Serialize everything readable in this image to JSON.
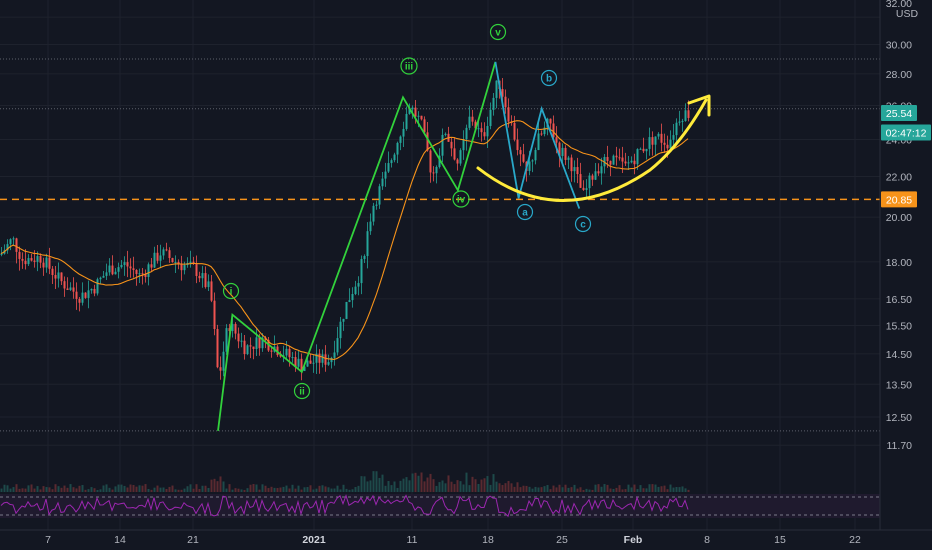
{
  "chart_data": {
    "type": "candlestick",
    "currency": "USD",
    "y_axis": {
      "scale": "log",
      "range": [
        11.3,
        33.0
      ],
      "ticks": [
        "32.00",
        "30.00",
        "28.00",
        "26.00",
        "24.00",
        "22.00",
        "20.00",
        "18.00",
        "16.50",
        "15.50",
        "14.50",
        "13.50",
        "12.50",
        "11.70"
      ],
      "tick_values": [
        32,
        30,
        28,
        26,
        24,
        22,
        20,
        18,
        16.5,
        15.5,
        14.5,
        13.5,
        12.5,
        11.7
      ]
    },
    "x_axis": {
      "ticks": [
        "7",
        "14",
        "21",
        "2021",
        "11",
        "18",
        "25",
        "Feb",
        "8",
        "15",
        "22"
      ],
      "bold_ticks": [
        "2021",
        "Feb"
      ]
    },
    "price_tags": [
      {
        "text": "25.54",
        "value": 25.54,
        "color": "#26a69a"
      },
      {
        "text": "02:47:12",
        "value": 24.4,
        "color": "#26a69a"
      },
      {
        "text": "20.85",
        "value": 20.85,
        "color": "#f7931a"
      }
    ],
    "support_line": {
      "value": 20.85,
      "color": "#f7931a",
      "style": "dashed"
    },
    "dotted_levels": [
      29.0,
      25.8,
      12.1
    ],
    "elliott_impulse": {
      "color": "#32d23c",
      "points": [
        {
          "label": "",
          "bar": 0,
          "value": 12.1
        },
        {
          "label": "i",
          "bar": 5,
          "value": 15.9
        },
        {
          "label": "ii",
          "bar": 29,
          "value": 13.9
        },
        {
          "label": "iii",
          "bar": 64,
          "value": 26.5
        },
        {
          "label": "iv",
          "bar": 83,
          "value": 21.3
        },
        {
          "label": "v",
          "bar": 96,
          "value": 28.8
        }
      ]
    },
    "elliott_correction": {
      "color": "#29a8c9",
      "points": [
        {
          "label": "",
          "bar": 96,
          "value": 28.8
        },
        {
          "label": "a",
          "bar": 104,
          "value": 20.9
        },
        {
          "label": "b",
          "bar": 112,
          "value": 25.8
        },
        {
          "label": "c",
          "bar": 125,
          "value": 20.4
        }
      ]
    },
    "wave_labels": [
      {
        "text": "i",
        "color": "#32d23c"
      },
      {
        "text": "ii",
        "color": "#32d23c"
      },
      {
        "text": "iii",
        "color": "#32d23c"
      },
      {
        "text": "iv",
        "color": "#32d23c"
      },
      {
        "text": "v",
        "color": "#32d23c"
      },
      {
        "text": "a",
        "color": "#29a8c9"
      },
      {
        "text": "b",
        "color": "#29a8c9"
      },
      {
        "text": "c",
        "color": "#29a8c9"
      }
    ],
    "colors": {
      "background": "#131722",
      "up_candle": "#26a69a",
      "down_candle": "#ef5350",
      "moving_average": "#f7931a",
      "projection_arrow": "#ffeb3b",
      "rsi": "#9c27b0"
    }
  }
}
